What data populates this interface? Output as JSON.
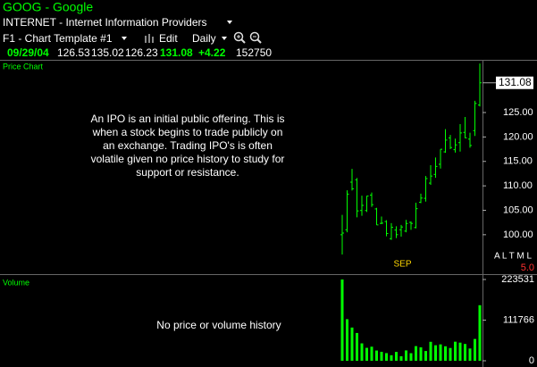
{
  "header": {
    "symbol_title": "GOOG - Google",
    "industry": "INTERNET - Internet Information Providers",
    "template": "F1 - Chart Template #1",
    "edit": "Edit",
    "period": "Daily"
  },
  "quote": {
    "date": "09/29/04",
    "open": 126.53,
    "high": 135.02,
    "low": 126.23,
    "close": 131.08,
    "change": {
      "value": 4.22,
      "label": "+4.22"
    },
    "volume": 152750
  },
  "chart_data": [
    {
      "type": "ohlc",
      "title": "Price Chart",
      "color": "#00ff00",
      "annotation": [
        "An IPO is an initial public offering.  This is",
        "when a stock begins to trade publicly on",
        "an exchange.  Trading IPO's is often",
        "volatile given no price history to study for",
        "support or resistance."
      ],
      "categories": [
        null,
        null,
        null,
        null,
        null,
        null,
        null,
        null,
        null,
        "SEP",
        null,
        null,
        null,
        null,
        null,
        null,
        null,
        null,
        null,
        null,
        null,
        null,
        null,
        null,
        null,
        null,
        null,
        null,
        null
      ],
      "open": [
        100,
        101.01,
        110.75,
        111.24,
        104.96,
        104.95,
        108.1,
        105.28,
        102.32,
        102.7,
        99.19,
        100.95,
        101.01,
        100.74,
        102.53,
        101.47,
        106.63,
        107.45,
        110.56,
        112.34,
        114.42,
        116.95,
        119.81,
        117.4,
        118.84,
        120.94,
        119.56,
        121.3,
        126.53
      ],
      "high": [
        104.06,
        109.08,
        113.48,
        111.6,
        108,
        107.95,
        108.62,
        105.49,
        103.71,
        102.97,
        102.37,
        101.74,
        102,
        103.03,
        102.71,
        106.56,
        108.41,
        112,
        114.23,
        115.8,
        117.49,
        121.6,
        120.42,
        119.67,
        122.63,
        124.1,
        120.88,
        127.4,
        135.02
      ],
      "low": [
        95.96,
        100.5,
        109.05,
        103.57,
        103.88,
        104.66,
        105.69,
        102.01,
        102.16,
        99.67,
        98.94,
        99.32,
        99.61,
        100.5,
        101,
        101.3,
        106.46,
        106.79,
        110.2,
        111.65,
        113.55,
        116.77,
        117.51,
        116.81,
        117.02,
        119.76,
        117.8,
        120.21,
        126.23
      ],
      "close": [
        100.34,
        108.31,
        109.4,
        104.87,
        106,
        107.91,
        106.15,
        102.01,
        102.37,
        100.25,
        101.51,
        100.01,
        101.58,
        102.3,
        102.31,
        105.33,
        107.5,
        111.49,
        112,
        113.97,
        117.49,
        119.36,
        117.84,
        118.38,
        120.82,
        119.83,
        118.26,
        126.86,
        131.08
      ],
      "ylim": [
        92.3,
        135.6
      ],
      "yticks": [
        {
          "value": 100,
          "label": "100.00"
        },
        {
          "value": 105,
          "label": "105.00"
        },
        {
          "value": 110,
          "label": "110.00"
        },
        {
          "value": 115,
          "label": "115.00"
        },
        {
          "value": 120,
          "label": "120.00"
        },
        {
          "value": 125,
          "label": "125.00"
        }
      ],
      "indicator_keys": "A L T M L",
      "indicator_value": "5.0"
    },
    {
      "type": "bar",
      "title": "Volume",
      "color": "#00ff00",
      "annotation": [
        "No price or volume history"
      ],
      "values": [
        223531,
        114286,
        91370,
        76313,
        47838,
        35510,
        38658,
        28158,
        24614,
        21000,
        15120,
        24300,
        12500,
        28400,
        20800,
        40200,
        36900,
        26800,
        52100,
        42600,
        45000,
        39800,
        35100,
        52400,
        49800,
        46100,
        33700,
        59900,
        152750
      ],
      "ylim": [
        0,
        230900
      ],
      "yticks": [
        0,
        111766,
        223531
      ]
    }
  ]
}
